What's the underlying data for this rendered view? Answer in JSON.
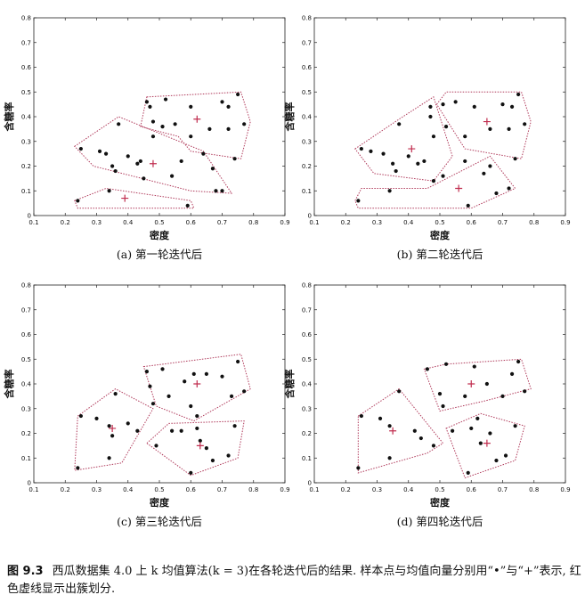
{
  "chart_data": [
    {
      "type": "scatter",
      "subcaption": "(a) 第一轮迭代后",
      "xlabel": "密度",
      "ylabel": "含糖率",
      "xlim": [
        0.1,
        0.9
      ],
      "ylim": [
        0,
        0.8
      ],
      "xticks": [
        "0.1",
        "0.2",
        "0.3",
        "0.4",
        "0.5",
        "0.6",
        "0.7",
        "0.8",
        "0.9"
      ],
      "yticks": [
        "0",
        "0.1",
        "0.2",
        "0.3",
        "0.4",
        "0.5",
        "0.6",
        "0.7",
        "0.8"
      ],
      "clusters": [
        {
          "hull": [
            [
              0.46,
              0.48
            ],
            [
              0.76,
              0.5
            ],
            [
              0.79,
              0.38
            ],
            [
              0.76,
              0.23
            ],
            [
              0.6,
              0.26
            ],
            [
              0.56,
              0.32
            ],
            [
              0.44,
              0.36
            ]
          ],
          "mean": [
            0.62,
            0.39
          ],
          "points": [
            [
              0.47,
              0.44
            ],
            [
              0.48,
              0.38
            ],
            [
              0.52,
              0.47
            ],
            [
              0.55,
              0.37
            ],
            [
              0.6,
              0.32
            ],
            [
              0.6,
              0.44
            ],
            [
              0.66,
              0.35
            ],
            [
              0.7,
              0.46
            ],
            [
              0.72,
              0.35
            ],
            [
              0.72,
              0.44
            ],
            [
              0.75,
              0.49
            ],
            [
              0.77,
              0.37
            ],
            [
              0.74,
              0.23
            ],
            [
              0.46,
              0.46
            ],
            [
              0.51,
              0.36
            ]
          ]
        },
        {
          "hull": [
            [
              0.23,
              0.28
            ],
            [
              0.37,
              0.4
            ],
            [
              0.64,
              0.26
            ],
            [
              0.73,
              0.09
            ],
            [
              0.6,
              0.1
            ],
            [
              0.29,
              0.2
            ]
          ],
          "mean": [
            0.48,
            0.21
          ],
          "points": [
            [
              0.25,
              0.27
            ],
            [
              0.31,
              0.26
            ],
            [
              0.33,
              0.25
            ],
            [
              0.35,
              0.2
            ],
            [
              0.37,
              0.37
            ],
            [
              0.4,
              0.24
            ],
            [
              0.43,
              0.21
            ],
            [
              0.44,
              0.22
            ],
            [
              0.45,
              0.15
            ],
            [
              0.48,
              0.32
            ],
            [
              0.54,
              0.16
            ],
            [
              0.57,
              0.22
            ],
            [
              0.64,
              0.25
            ],
            [
              0.67,
              0.19
            ],
            [
              0.68,
              0.1
            ],
            [
              0.7,
              0.1
            ],
            [
              0.36,
              0.18
            ]
          ]
        },
        {
          "hull": [
            [
              0.23,
              0.06
            ],
            [
              0.33,
              0.11
            ],
            [
              0.6,
              0.06
            ],
            [
              0.61,
              0.03
            ],
            [
              0.24,
              0.03
            ]
          ],
          "mean": [
            0.39,
            0.07
          ],
          "points": [
            [
              0.24,
              0.06
            ],
            [
              0.34,
              0.1
            ],
            [
              0.59,
              0.04
            ]
          ]
        }
      ]
    },
    {
      "type": "scatter",
      "subcaption": "(b) 第二轮迭代后",
      "xlabel": "密度",
      "ylabel": "含糖率",
      "xlim": [
        0.1,
        0.9
      ],
      "ylim": [
        0,
        0.8
      ],
      "xticks": [
        "0.1",
        "0.2",
        "0.3",
        "0.4",
        "0.5",
        "0.6",
        "0.7",
        "0.8",
        "0.9"
      ],
      "yticks": [
        "0",
        "0.1",
        "0.2",
        "0.3",
        "0.4",
        "0.5",
        "0.6",
        "0.7",
        "0.8"
      ],
      "clusters": [
        {
          "hull": [
            [
              0.49,
              0.45
            ],
            [
              0.52,
              0.5
            ],
            [
              0.76,
              0.5
            ],
            [
              0.79,
              0.38
            ],
            [
              0.76,
              0.23
            ],
            [
              0.58,
              0.27
            ],
            [
              0.56,
              0.31
            ]
          ],
          "mean": [
            0.65,
            0.38
          ],
          "points": [
            [
              0.51,
              0.45
            ],
            [
              0.55,
              0.46
            ],
            [
              0.58,
              0.32
            ],
            [
              0.61,
              0.44
            ],
            [
              0.66,
              0.35
            ],
            [
              0.7,
              0.45
            ],
            [
              0.72,
              0.35
            ],
            [
              0.73,
              0.44
            ],
            [
              0.75,
              0.49
            ],
            [
              0.77,
              0.37
            ],
            [
              0.74,
              0.23
            ],
            [
              0.52,
              0.36
            ]
          ]
        },
        {
          "hull": [
            [
              0.23,
              0.27
            ],
            [
              0.37,
              0.39
            ],
            [
              0.48,
              0.48
            ],
            [
              0.54,
              0.24
            ],
            [
              0.48,
              0.14
            ],
            [
              0.29,
              0.17
            ]
          ],
          "mean": [
            0.41,
            0.27
          ],
          "points": [
            [
              0.25,
              0.27
            ],
            [
              0.28,
              0.26
            ],
            [
              0.32,
              0.25
            ],
            [
              0.35,
              0.21
            ],
            [
              0.37,
              0.37
            ],
            [
              0.4,
              0.24
            ],
            [
              0.43,
              0.21
            ],
            [
              0.45,
              0.22
            ],
            [
              0.48,
              0.14
            ],
            [
              0.48,
              0.32
            ],
            [
              0.47,
              0.44
            ],
            [
              0.47,
              0.4
            ],
            [
              0.51,
              0.16
            ],
            [
              0.36,
              0.18
            ]
          ]
        },
        {
          "hull": [
            [
              0.23,
              0.06
            ],
            [
              0.25,
              0.11
            ],
            [
              0.46,
              0.11
            ],
            [
              0.66,
              0.24
            ],
            [
              0.74,
              0.11
            ],
            [
              0.6,
              0.03
            ],
            [
              0.24,
              0.03
            ]
          ],
          "mean": [
            0.56,
            0.11
          ],
          "points": [
            [
              0.24,
              0.06
            ],
            [
              0.34,
              0.1
            ],
            [
              0.59,
              0.04
            ],
            [
              0.64,
              0.17
            ],
            [
              0.66,
              0.2
            ],
            [
              0.68,
              0.09
            ],
            [
              0.72,
              0.11
            ],
            [
              0.58,
              0.22
            ]
          ]
        }
      ]
    },
    {
      "type": "scatter",
      "subcaption": "(c) 第三轮迭代后",
      "xlabel": "密度",
      "ylabel": "含糖率",
      "xlim": [
        0.1,
        0.9
      ],
      "ylim": [
        0,
        0.8
      ],
      "xticks": [
        "0.1",
        "0.2",
        "0.3",
        "0.4",
        "0.5",
        "0.6",
        "0.7",
        "0.8",
        "0.9"
      ],
      "yticks": [
        "0",
        "0.1",
        "0.2",
        "0.3",
        "0.4",
        "0.5",
        "0.6",
        "0.7",
        "0.8"
      ],
      "clusters": [
        {
          "hull": [
            [
              0.45,
              0.47
            ],
            [
              0.76,
              0.52
            ],
            [
              0.79,
              0.38
            ],
            [
              0.61,
              0.25
            ],
            [
              0.49,
              0.31
            ]
          ],
          "mean": [
            0.62,
            0.4
          ],
          "points": [
            [
              0.46,
              0.45
            ],
            [
              0.47,
              0.39
            ],
            [
              0.51,
              0.46
            ],
            [
              0.53,
              0.35
            ],
            [
              0.58,
              0.41
            ],
            [
              0.6,
              0.31
            ],
            [
              0.61,
              0.44
            ],
            [
              0.65,
              0.44
            ],
            [
              0.7,
              0.43
            ],
            [
              0.73,
              0.35
            ],
            [
              0.75,
              0.49
            ],
            [
              0.77,
              0.37
            ],
            [
              0.48,
              0.32
            ],
            [
              0.62,
              0.27
            ]
          ]
        },
        {
          "hull": [
            [
              0.24,
              0.27
            ],
            [
              0.36,
              0.38
            ],
            [
              0.48,
              0.3
            ],
            [
              0.38,
              0.08
            ],
            [
              0.23,
              0.05
            ]
          ],
          "mean": [
            0.35,
            0.22
          ],
          "points": [
            [
              0.25,
              0.27
            ],
            [
              0.3,
              0.26
            ],
            [
              0.34,
              0.23
            ],
            [
              0.35,
              0.19
            ],
            [
              0.36,
              0.36
            ],
            [
              0.4,
              0.24
            ],
            [
              0.43,
              0.21
            ],
            [
              0.24,
              0.06
            ],
            [
              0.34,
              0.1
            ]
          ]
        },
        {
          "hull": [
            [
              0.46,
              0.16
            ],
            [
              0.53,
              0.24
            ],
            [
              0.77,
              0.25
            ],
            [
              0.75,
              0.1
            ],
            [
              0.6,
              0.03
            ]
          ],
          "mean": [
            0.63,
            0.15
          ],
          "points": [
            [
              0.49,
              0.15
            ],
            [
              0.54,
              0.21
            ],
            [
              0.6,
              0.04
            ],
            [
              0.62,
              0.22
            ],
            [
              0.63,
              0.17
            ],
            [
              0.65,
              0.14
            ],
            [
              0.67,
              0.09
            ],
            [
              0.72,
              0.11
            ],
            [
              0.74,
              0.23
            ],
            [
              0.57,
              0.21
            ]
          ]
        }
      ]
    },
    {
      "type": "scatter",
      "subcaption": "(d) 第四轮迭代后",
      "xlabel": "密度",
      "ylabel": "含糖率",
      "xlim": [
        0.1,
        0.9
      ],
      "ylim": [
        0,
        0.8
      ],
      "xticks": [
        "0.1",
        "0.2",
        "0.3",
        "0.4",
        "0.5",
        "0.6",
        "0.7",
        "0.8",
        "0.9"
      ],
      "yticks": [
        "0",
        "0.1",
        "0.2",
        "0.3",
        "0.4",
        "0.5",
        "0.6",
        "0.7",
        "0.8"
      ],
      "clusters": [
        {
          "hull": [
            [
              0.45,
              0.46
            ],
            [
              0.52,
              0.48
            ],
            [
              0.76,
              0.5
            ],
            [
              0.79,
              0.38
            ],
            [
              0.64,
              0.33
            ],
            [
              0.5,
              0.29
            ]
          ],
          "mean": [
            0.6,
            0.4
          ],
          "points": [
            [
              0.46,
              0.46
            ],
            [
              0.5,
              0.36
            ],
            [
              0.52,
              0.48
            ],
            [
              0.58,
              0.35
            ],
            [
              0.61,
              0.47
            ],
            [
              0.65,
              0.4
            ],
            [
              0.7,
              0.35
            ],
            [
              0.73,
              0.44
            ],
            [
              0.75,
              0.49
            ],
            [
              0.77,
              0.37
            ],
            [
              0.51,
              0.31
            ]
          ]
        },
        {
          "hull": [
            [
              0.24,
              0.27
            ],
            [
              0.37,
              0.38
            ],
            [
              0.51,
              0.16
            ],
            [
              0.46,
              0.12
            ],
            [
              0.24,
              0.04
            ]
          ],
          "mean": [
            0.35,
            0.21
          ],
          "points": [
            [
              0.25,
              0.27
            ],
            [
              0.31,
              0.26
            ],
            [
              0.34,
              0.23
            ],
            [
              0.37,
              0.37
            ],
            [
              0.42,
              0.21
            ],
            [
              0.44,
              0.18
            ],
            [
              0.48,
              0.15
            ],
            [
              0.24,
              0.06
            ],
            [
              0.34,
              0.1
            ]
          ]
        },
        {
          "hull": [
            [
              0.52,
              0.22
            ],
            [
              0.63,
              0.28
            ],
            [
              0.77,
              0.23
            ],
            [
              0.74,
              0.09
            ],
            [
              0.58,
              0.02
            ]
          ],
          "mean": [
            0.65,
            0.16
          ],
          "points": [
            [
              0.54,
              0.21
            ],
            [
              0.59,
              0.04
            ],
            [
              0.62,
              0.26
            ],
            [
              0.63,
              0.16
            ],
            [
              0.66,
              0.2
            ],
            [
              0.68,
              0.09
            ],
            [
              0.71,
              0.11
            ],
            [
              0.74,
              0.23
            ],
            [
              0.6,
              0.22
            ]
          ]
        }
      ]
    }
  ],
  "caption": {
    "label": "图 9.3",
    "text": "西瓜数据集 4.0 上 k 均值算法(k = 3)在各轮迭代后的结果. 样本点与均值向量分别用“•”与“+”表示, 红色虚线显示出簇划分."
  },
  "colors": {
    "hull": "#b03a5b",
    "mean": "#c02c4e",
    "point": "#111111",
    "axis": "#222222"
  }
}
